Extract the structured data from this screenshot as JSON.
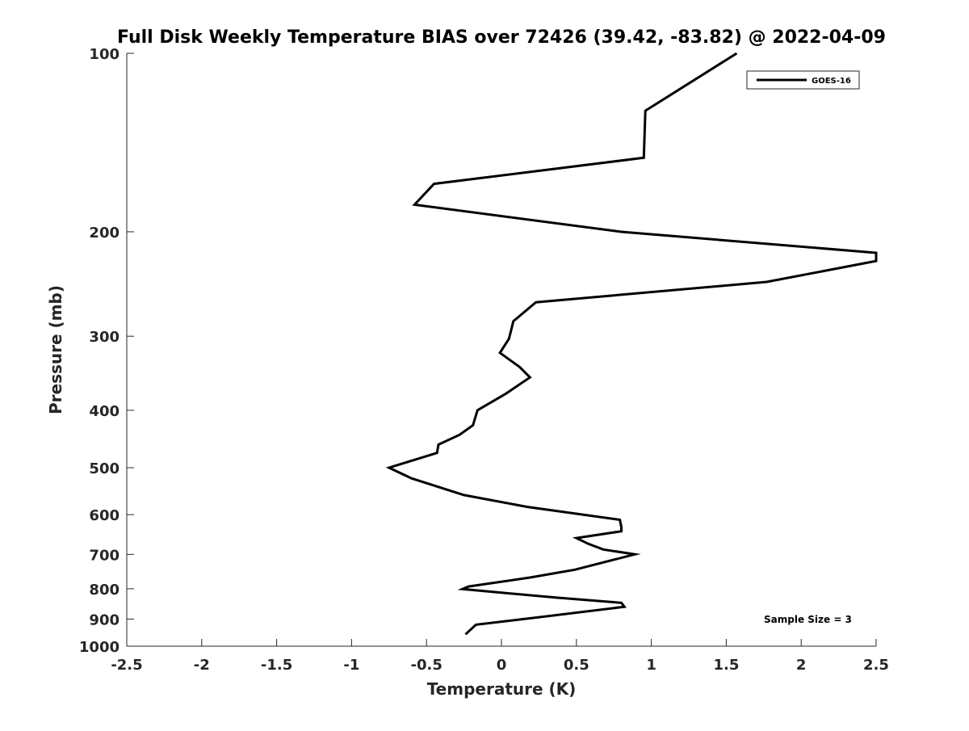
{
  "chart_data": {
    "type": "line",
    "title": "Full Disk Weekly Temperature BIAS over 72426 (39.42, -83.82) @ 2022-04-09",
    "xlabel": "Temperature (K)",
    "ylabel": "Pressure (mb)",
    "xlim": [
      -2.5,
      2.5
    ],
    "ylim": [
      100,
      1000
    ],
    "y_scale": "log",
    "y_reversed": true,
    "grid": false,
    "legend_placement": "top-right",
    "x_ticks": [
      "-2.5",
      "-2",
      "-1.5",
      "-1",
      "-0.5",
      "0",
      "0.5",
      "1",
      "1.5",
      "2",
      "2.5"
    ],
    "y_ticks": [
      "100",
      "200",
      "300",
      "400",
      "500",
      "600",
      "700",
      "800",
      "900",
      "1000"
    ],
    "series": [
      {
        "name": "GOES-16",
        "color": "#000000",
        "points": [
          [
            1.57,
            100
          ],
          [
            0.96,
            125
          ],
          [
            0.95,
            150
          ],
          [
            -0.45,
            166
          ],
          [
            -0.58,
            180
          ],
          [
            0.8,
            200
          ],
          [
            2.5,
            217
          ],
          [
            2.5,
            224
          ],
          [
            1.77,
            243
          ],
          [
            0.23,
            263
          ],
          [
            0.08,
            283
          ],
          [
            0.05,
            303
          ],
          [
            -0.01,
            320
          ],
          [
            0.12,
            338
          ],
          [
            0.19,
            352
          ],
          [
            0.03,
            375
          ],
          [
            -0.16,
            400
          ],
          [
            -0.19,
            424
          ],
          [
            -0.28,
            440
          ],
          [
            -0.42,
            457
          ],
          [
            -0.43,
            472
          ],
          [
            -0.75,
            500
          ],
          [
            -0.6,
            521
          ],
          [
            -0.25,
            556
          ],
          [
            0.17,
            582
          ],
          [
            0.79,
            612
          ],
          [
            0.8,
            630
          ],
          [
            0.8,
            640
          ],
          [
            0.5,
            657
          ],
          [
            0.58,
            672
          ],
          [
            0.68,
            687
          ],
          [
            0.89,
            700
          ],
          [
            0.49,
            743
          ],
          [
            0.19,
            766
          ],
          [
            -0.22,
            793
          ],
          [
            -0.26,
            801
          ],
          [
            0.36,
            828
          ],
          [
            0.8,
            845
          ],
          [
            0.82,
            858
          ],
          [
            0.2,
            897
          ],
          [
            -0.17,
            920
          ],
          [
            -0.24,
            955
          ]
        ]
      }
    ],
    "annotations": [
      "Sample Size = 3"
    ]
  }
}
